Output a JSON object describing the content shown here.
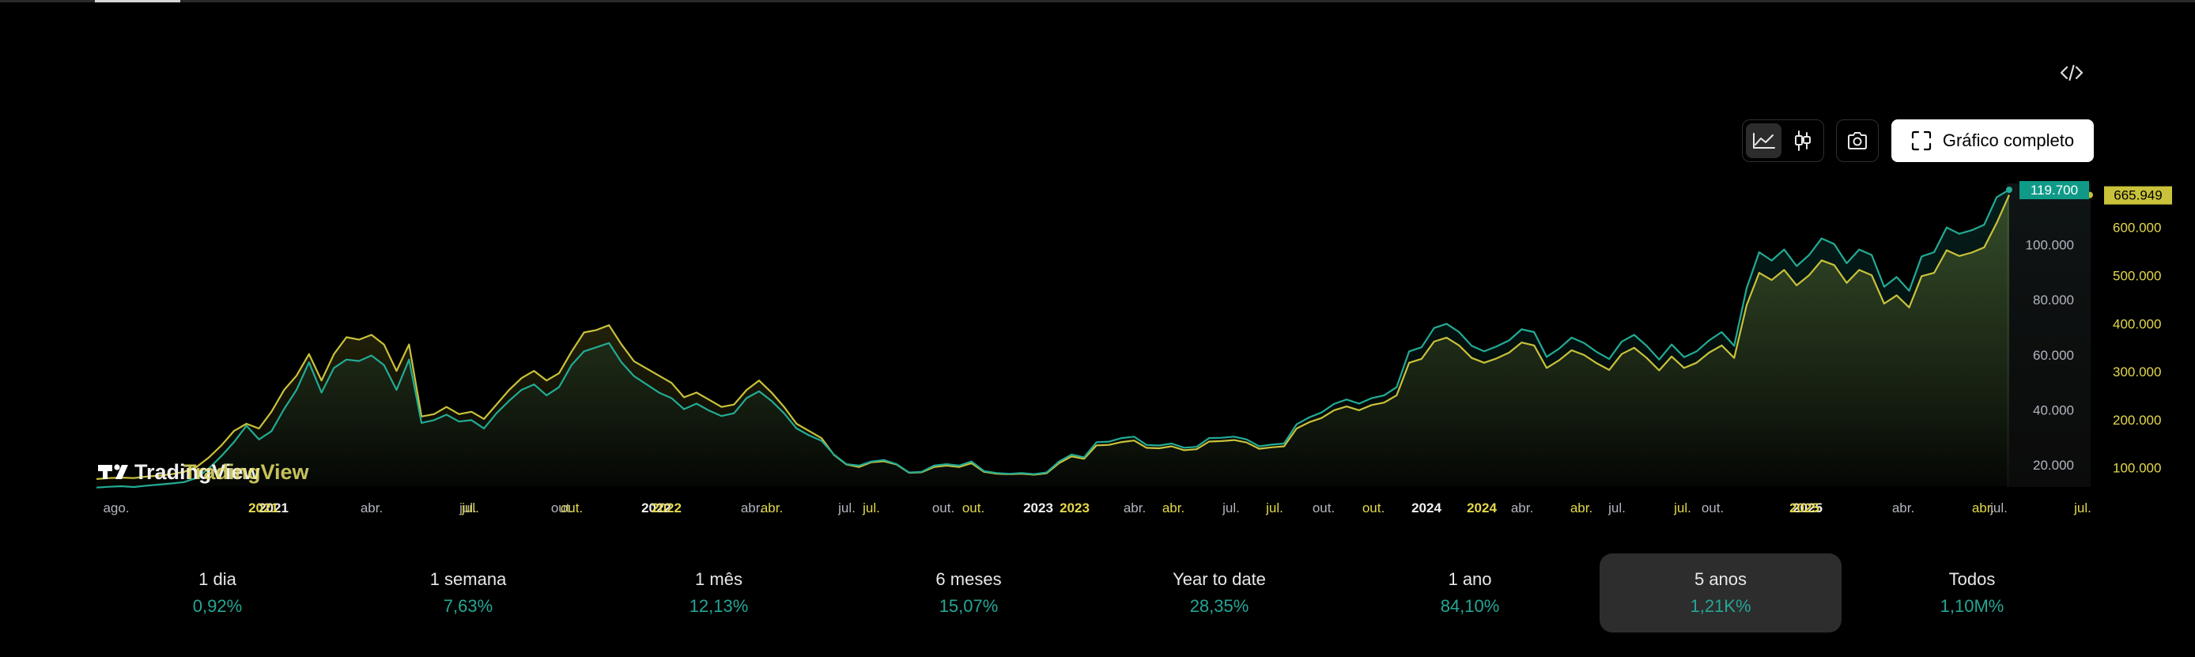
{
  "toolbar": {
    "full_chart_label": "Gráfico completo"
  },
  "watermark": "TradingView",
  "colors": {
    "background": "#000000",
    "series_teal": "#22ab94",
    "series_yellow": "#c9c23a",
    "label_teal_bg": "#0f9a88",
    "label_yellow_bg": "#c9c23a",
    "axis_teal_text": "#b2b5be",
    "axis_yellow_text": "#e3d84a"
  },
  "chart_data": {
    "type": "line",
    "x_axis": {
      "ticks_teal": [
        "ago.",
        "2021",
        "abr.",
        "jul.",
        "out.",
        "2022",
        "abr.",
        "jul.",
        "out.",
        "2023",
        "abr.",
        "jul.",
        "out.",
        "2024",
        "abr.",
        "jul.",
        "out.",
        "2025",
        "abr.",
        "jul."
      ],
      "ticks_yellow": [
        "2021",
        "jul.",
        "out.",
        "2022",
        "abr.",
        "jul.",
        "out.",
        "2023",
        "abr.",
        "jul.",
        "out.",
        "2024",
        "abr.",
        "jul.",
        "2025",
        "abr.",
        "jul."
      ]
    },
    "y_axis_left_series": {
      "ticks": [
        "20.000",
        "40.000",
        "60.000",
        "80.000",
        "100.000"
      ],
      "ylim": [
        12000,
        122000
      ]
    },
    "y_axis_right_series": {
      "ticks": [
        "100.000",
        "200.000",
        "300.000",
        "400.000",
        "500.000",
        "600.000"
      ],
      "ylim": [
        60000,
        690000
      ]
    },
    "series": [
      {
        "color": "teal",
        "last_value_label": "119.700",
        "values": [
          11500,
          11800,
          12000,
          11700,
          12200,
          12600,
          13000,
          13500,
          15000,
          18500,
          23000,
          28000,
          34000,
          29000,
          32000,
          40000,
          47000,
          57000,
          46000,
          55000,
          58000,
          57500,
          59500,
          56000,
          47000,
          58000,
          35000,
          36000,
          38000,
          35500,
          36000,
          33000,
          38500,
          43000,
          47000,
          49000,
          45000,
          48000,
          56000,
          61000,
          62500,
          64000,
          57000,
          52000,
          49000,
          46000,
          44000,
          40000,
          42000,
          39500,
          37500,
          38500,
          44000,
          46500,
          43000,
          38500,
          33000,
          30500,
          28500,
          23500,
          20000,
          19500,
          21000,
          21500,
          20000,
          17000,
          17200,
          19500,
          20000,
          19500,
          21000,
          17500,
          16800,
          16500,
          16800,
          16400,
          17000,
          21000,
          23500,
          22500,
          28000,
          28200,
          29500,
          30000,
          27000,
          26800,
          27500,
          26000,
          26300,
          29500,
          29600,
          30000,
          29000,
          26500,
          27100,
          27500,
          34500,
          37000,
          38800,
          41900,
          43500,
          42000,
          44000,
          45000,
          48000,
          61000,
          62500,
          69500,
          71000,
          68000,
          63000,
          61000,
          62800,
          65000,
          69000,
          68000,
          59000,
          62000,
          66000,
          64000,
          60800,
          58200,
          64500,
          67000,
          63000,
          58000,
          63500,
          58900,
          61000,
          65000,
          68000,
          63000,
          84000,
          97000,
          94000,
          98000,
          92000,
          96000,
          102000,
          100000,
          93000,
          98000,
          96000,
          84500,
          88000,
          83000,
          95500,
          97000,
          106000,
          103700,
          105000,
          107000,
          117000,
          119700
        ]
      },
      {
        "color": "yellow",
        "last_value_label": "665.949",
        "values": [
          75000,
          77000,
          78000,
          77000,
          80000,
          82000,
          85000,
          90000,
          100000,
          120000,
          145000,
          175000,
          190000,
          180000,
          215000,
          260000,
          290000,
          335000,
          280000,
          335000,
          370000,
          365000,
          375000,
          355000,
          300000,
          355000,
          205000,
          210000,
          225000,
          210000,
          215000,
          200000,
          230000,
          260000,
          285000,
          300000,
          280000,
          295000,
          340000,
          380000,
          385000,
          395000,
          355000,
          320000,
          305000,
          290000,
          275000,
          245000,
          255000,
          240000,
          225000,
          230000,
          260000,
          280000,
          255000,
          225000,
          190000,
          175000,
          160000,
          125000,
          105000,
          100000,
          110000,
          112000,
          105000,
          88000,
          89000,
          100000,
          103000,
          100000,
          108000,
          90000,
          86000,
          85000,
          86000,
          84000,
          87000,
          108000,
          122000,
          117000,
          145000,
          146000,
          152000,
          155000,
          140000,
          139000,
          143000,
          135000,
          137000,
          153000,
          154000,
          156000,
          151000,
          138000,
          141000,
          143000,
          180000,
          193000,
          202000,
          218000,
          226000,
          218000,
          229000,
          234000,
          249000,
          317000,
          325000,
          361000,
          369000,
          353000,
          327000,
          317000,
          326000,
          338000,
          359000,
          353000,
          306000,
          322000,
          343000,
          333000,
          316000,
          302000,
          335000,
          348000,
          327000,
          301000,
          330000,
          306000,
          317000,
          338000,
          353000,
          327000,
          437000,
          504000,
          489000,
          510000,
          478000,
          499000,
          530000,
          520000,
          483000,
          510000,
          499000,
          440000,
          457000,
          432000,
          497000,
          504000,
          551000,
          539000,
          546000,
          557000,
          608000,
          665949
        ]
      }
    ]
  },
  "periods": [
    {
      "label": "1 dia",
      "value": "0,92%"
    },
    {
      "label": "1 semana",
      "value": "7,63%"
    },
    {
      "label": "1 mês",
      "value": "12,13%"
    },
    {
      "label": "6 meses",
      "value": "15,07%"
    },
    {
      "label": "Year to date",
      "value": "28,35%"
    },
    {
      "label": "1 ano",
      "value": "84,10%"
    },
    {
      "label": "5 anos",
      "value": "1,21K%",
      "active": true
    },
    {
      "label": "Todos",
      "value": "1,10M%"
    }
  ]
}
